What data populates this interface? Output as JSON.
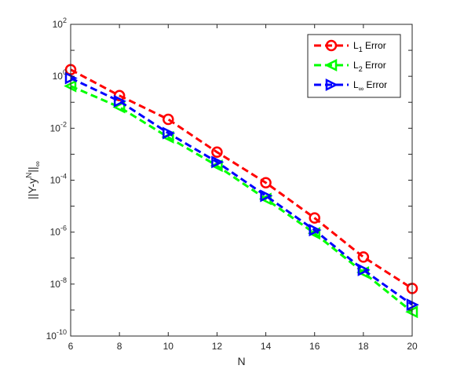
{
  "chart_data": {
    "type": "line",
    "xlabel": "N",
    "ylabel": {
      "base": "||Y-y",
      "sup": "N",
      "mid": "||",
      "sub": "∞"
    },
    "xlim": [
      6,
      20
    ],
    "ylim": [
      1e-10,
      100
    ],
    "yscale": "log",
    "x_ticks": [
      "6",
      "8",
      "10",
      "12",
      "14",
      "16",
      "18",
      "20"
    ],
    "y_ticks": [
      {
        "base": "10",
        "exp": "2"
      },
      {
        "base": "10",
        "exp": "0"
      },
      {
        "base": "10",
        "exp": "-2"
      },
      {
        "base": "10",
        "exp": "-4"
      },
      {
        "base": "10",
        "exp": "-6"
      },
      {
        "base": "10",
        "exp": "-8"
      },
      {
        "base": "10",
        "exp": "-10"
      }
    ],
    "legend_position": "top-right",
    "x": [
      6,
      8,
      10,
      12,
      14,
      16,
      18,
      20
    ],
    "series": [
      {
        "legend": {
          "main": "L",
          "sub": "1",
          "rest": " Error"
        },
        "color": "#ff0000",
        "marker": "circle",
        "values": [
          1.8,
          0.18,
          0.022,
          0.0012,
          8e-05,
          3.5e-06,
          1.1e-07,
          6.8e-09
        ]
      },
      {
        "legend": {
          "main": "L",
          "sub": "2",
          "rest": " Error"
        },
        "color": "#00ff00",
        "marker": "triangle-left",
        "values": [
          0.42,
          0.065,
          0.0045,
          0.00036,
          1.9e-05,
          9e-07,
          2.8e-08,
          8.5e-10
        ]
      },
      {
        "legend": {
          "main": "L",
          "sub": "∞",
          "rest": " Error"
        },
        "color": "#0000ff",
        "marker": "triangle-right",
        "values": [
          0.85,
          0.11,
          0.0065,
          0.0005,
          2.5e-05,
          1.2e-06,
          3.5e-08,
          1.6e-09
        ]
      }
    ]
  }
}
